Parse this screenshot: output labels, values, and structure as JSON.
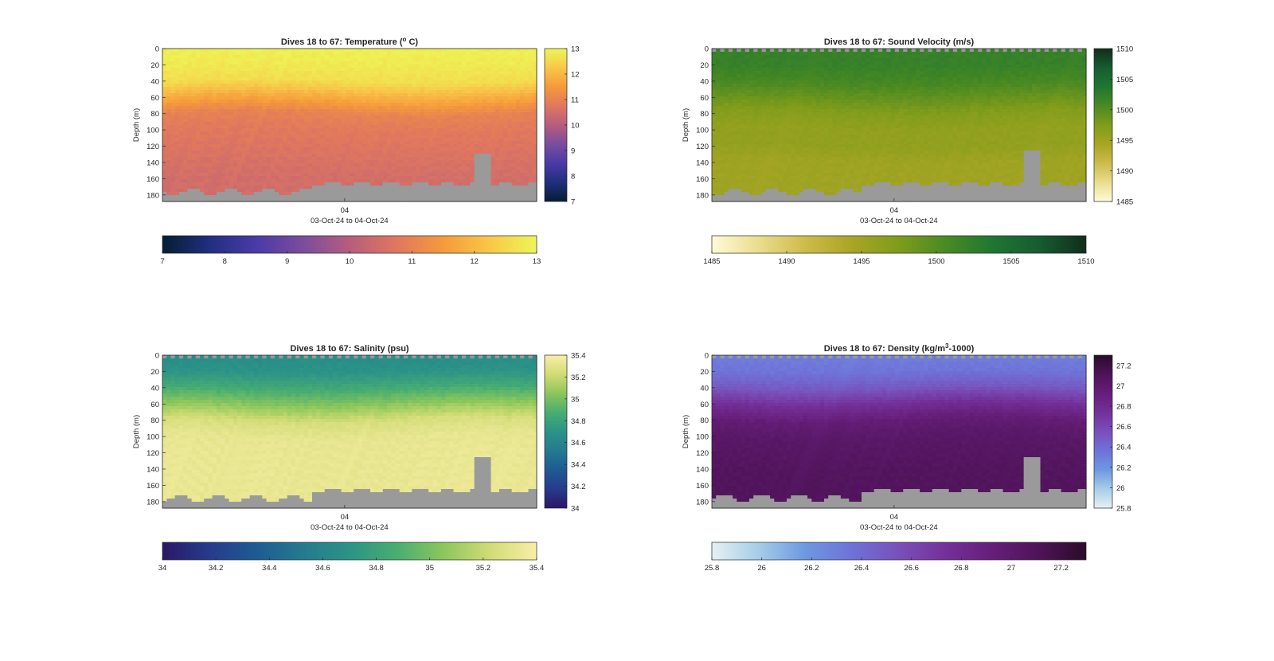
{
  "figure": {
    "background": "#ffffff",
    "mask_color": "#9a9a9a"
  },
  "panels": [
    {
      "id": "temperature",
      "title": "Dives 18 to 67: Temperature (",
      "title_sup": "o",
      "title_tail": " C)",
      "ylabel": "Depth (m)",
      "xtick": "04",
      "xlabel": "03-Oct-24 to 04-Oct-24",
      "colormap": [
        "#061d33",
        "#1f2f7f",
        "#4a3aa8",
        "#7a4d9c",
        "#b65d7e",
        "#e0775e",
        "#f59a3c",
        "#f9c748",
        "#ecf657"
      ],
      "colorbar_right_ticks": [
        "7",
        "8",
        "9",
        "10",
        "11",
        "12",
        "13"
      ],
      "colorbar_bottom_ticks": [
        "7",
        "8",
        "9",
        "10",
        "11",
        "12",
        "13"
      ]
    },
    {
      "id": "sound-velocity",
      "title": "Dives 18 to 67: Sound Velocity (m/s)",
      "ylabel": "Depth (m)",
      "xtick": "04",
      "xlabel": "03-Oct-24 to 04-Oct-24",
      "colormap": [
        "#fefbd8",
        "#eadd8e",
        "#cdbb4a",
        "#a8a524",
        "#7f9c1b",
        "#4a8a22",
        "#1f7632",
        "#175c30",
        "#112d1b"
      ],
      "colorbar_right_ticks": [
        "1485",
        "1490",
        "1495",
        "1500",
        "1505",
        "1510"
      ],
      "colorbar_bottom_ticks": [
        "1485",
        "1490",
        "1495",
        "1500",
        "1505",
        "1510"
      ]
    },
    {
      "id": "salinity",
      "title": "Dives 18 to 67: Salinity (psu)",
      "ylabel": "Depth (m)",
      "xtick": "04",
      "xlabel": "03-Oct-24 to 04-Oct-24",
      "colormap": [
        "#2b1766",
        "#263b8c",
        "#1d5b93",
        "#247a8e",
        "#2c9387",
        "#48ad72",
        "#8cc65b",
        "#d1dc76",
        "#f9eea6"
      ],
      "colorbar_right_ticks": [
        "34",
        "34.2",
        "34.4",
        "34.6",
        "34.8",
        "35",
        "35.2",
        "35.4"
      ],
      "colorbar_bottom_ticks": [
        "34",
        "34.2",
        "34.4",
        "34.6",
        "34.8",
        "35",
        "35.2",
        "35.4"
      ]
    },
    {
      "id": "density",
      "title": "Dives 18 to 67: Density (kg/m",
      "title_sup": "3",
      "title_tail": "-1000)",
      "ylabel": "Depth (m)",
      "xtick": "04",
      "xlabel": "03-Oct-24 to 04-Oct-24",
      "colormap": [
        "#e6f1f2",
        "#a6cde8",
        "#6e98e0",
        "#6e72d8",
        "#7a4fba",
        "#74309a",
        "#661e7a",
        "#4e1357",
        "#2a0b2b"
      ],
      "colorbar_right_ticks": [
        "25.8",
        "26",
        "26.2",
        "26.4",
        "26.6",
        "26.8",
        "27",
        "27.2"
      ],
      "colorbar_bottom_ticks": [
        "25.8",
        "26",
        "26.2",
        "26.4",
        "26.6",
        "26.8",
        "27",
        "27.2"
      ]
    }
  ],
  "chart_data": [
    {
      "type": "heatmap",
      "title": "Dives 18 to 67: Temperature (o C)",
      "xlabel": "03-Oct-24 to 04-Oct-24",
      "ylabel": "Depth (m)",
      "x_tick_labels": [
        "04"
      ],
      "y_tick_labels": [
        "0",
        "20",
        "40",
        "60",
        "80",
        "100",
        "120",
        "140",
        "160",
        "180"
      ],
      "ylim": [
        188,
        0
      ],
      "clim": [
        7,
        13
      ],
      "dives": [
        18,
        67
      ],
      "profile_depths": [
        0,
        20,
        40,
        60,
        80,
        100,
        120,
        140,
        160,
        180
      ],
      "profile_values": [
        12.9,
        12.8,
        12.6,
        11.8,
        11.0,
        10.8,
        10.7,
        10.6,
        10.5,
        10.5
      ]
    },
    {
      "type": "heatmap",
      "title": "Dives 18 to 67: Sound Velocity (m/s)",
      "xlabel": "03-Oct-24 to 04-Oct-24",
      "ylabel": "Depth (m)",
      "x_tick_labels": [
        "04"
      ],
      "y_tick_labels": [
        "0",
        "20",
        "40",
        "60",
        "80",
        "100",
        "120",
        "140",
        "160",
        "180"
      ],
      "ylim": [
        188,
        0
      ],
      "clim": [
        1485,
        1510
      ],
      "dives": [
        18,
        67
      ],
      "profile_depths": [
        0,
        20,
        40,
        60,
        80,
        100,
        120,
        140,
        160,
        180
      ],
      "profile_values": [
        1502,
        1502,
        1501,
        1499,
        1497,
        1496,
        1496,
        1495,
        1495,
        1495
      ]
    },
    {
      "type": "heatmap",
      "title": "Dives 18 to 67: Salinity (psu)",
      "xlabel": "03-Oct-24 to 04-Oct-24",
      "ylabel": "Depth (m)",
      "x_tick_labels": [
        "04"
      ],
      "y_tick_labels": [
        "0",
        "20",
        "40",
        "60",
        "80",
        "100",
        "120",
        "140",
        "160",
        "180"
      ],
      "ylim": [
        188,
        0
      ],
      "clim": [
        34,
        35.4
      ],
      "dives": [
        18,
        67
      ],
      "profile_depths": [
        0,
        20,
        40,
        60,
        80,
        100,
        120,
        140,
        160,
        180
      ],
      "profile_values": [
        34.65,
        34.7,
        34.85,
        35.05,
        35.25,
        35.32,
        35.33,
        35.33,
        35.33,
        35.33
      ]
    },
    {
      "type": "heatmap",
      "title": "Dives 18 to 67: Density (kg/m3-1000)",
      "xlabel": "03-Oct-24 to 04-Oct-24",
      "ylabel": "Depth (m)",
      "x_tick_labels": [
        "04"
      ],
      "y_tick_labels": [
        "0",
        "20",
        "40",
        "60",
        "80",
        "100",
        "120",
        "140",
        "160",
        "180"
      ],
      "ylim": [
        188,
        0
      ],
      "clim": [
        25.8,
        27.3
      ],
      "dives": [
        18,
        67
      ],
      "profile_depths": [
        0,
        20,
        40,
        60,
        80,
        100,
        120,
        140,
        160,
        180
      ],
      "profile_values": [
        26.3,
        26.35,
        26.5,
        26.75,
        26.95,
        27.02,
        27.05,
        27.07,
        27.08,
        27.08
      ]
    }
  ]
}
